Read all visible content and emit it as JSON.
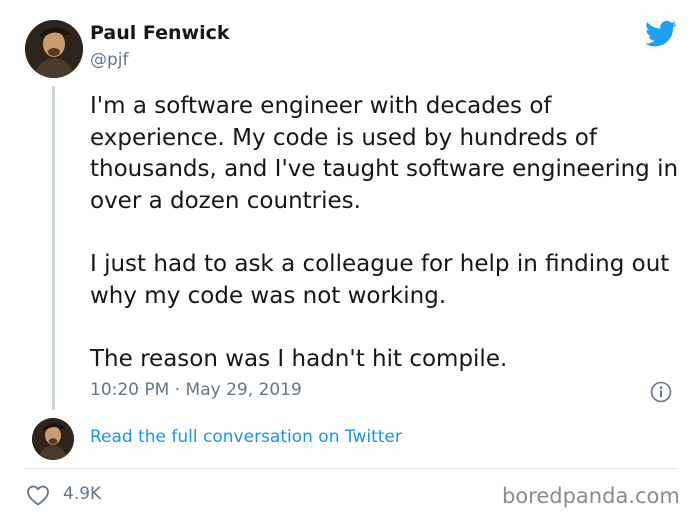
{
  "author": {
    "name": "Paul Fenwick",
    "handle": "@pjf"
  },
  "tweet": {
    "paragraphs": [
      "I'm a software engineer with decades of experience. My code is used by hundreds of thousands, and I've taught software engineering in over a dozen countries.",
      "I just had to ask a colleague for help in finding out why my code was not working.",
      "The reason was I hadn't hit compile."
    ],
    "timestamp": "10:20 PM · May 29, 2019"
  },
  "conversation_link": "Read the full conversation on Twitter",
  "engagement": {
    "likes": "4.9K"
  },
  "watermark": "boredpanda.com",
  "icons": {
    "brand": "twitter-bird-icon",
    "info": "info-icon",
    "like": "heart-icon"
  },
  "colors": {
    "twitter_blue": "#1da1f2",
    "link_blue": "#1b95e0",
    "secondary_text": "#657786",
    "primary_text": "#14171a",
    "thread_line": "#ccd6dd"
  }
}
